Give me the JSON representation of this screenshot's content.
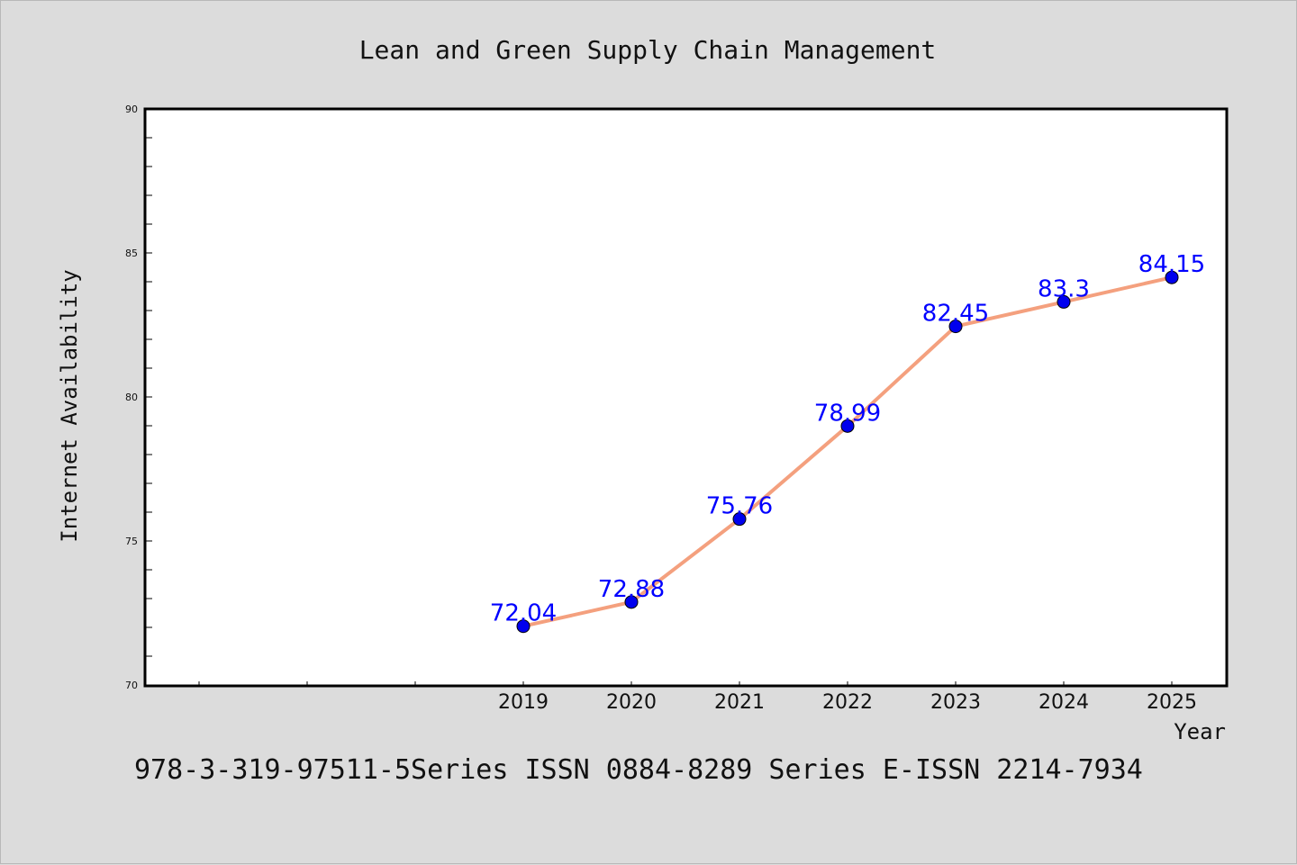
{
  "chart_data": {
    "type": "line",
    "title": "Lean and Green Supply Chain Management",
    "xlabel": "Year",
    "ylabel": "Internet Availability",
    "x": [
      "2019",
      "2020",
      "2021",
      "2022",
      "2023",
      "2024",
      "2025"
    ],
    "series": [
      {
        "values": [
          72.04,
          72.88,
          75.76,
          78.99,
          82.45,
          83.3,
          84.15
        ],
        "data_labels": [
          "72.04",
          "72.88",
          "75.76",
          "78.99",
          "82.45",
          "83.3",
          "84.15"
        ],
        "line_color": "#f4a07e",
        "marker_color": "#0000ee"
      }
    ],
    "ylim": [
      70,
      90
    ],
    "yticks": [
      "70",
      "75",
      "80",
      "85",
      "90"
    ],
    "grid": false,
    "legend": "none",
    "label_color": "#0000ff",
    "footer": "978-3-319-97511-5Series ISSN 0884-8289 Series E-ISSN 2214-7934"
  }
}
